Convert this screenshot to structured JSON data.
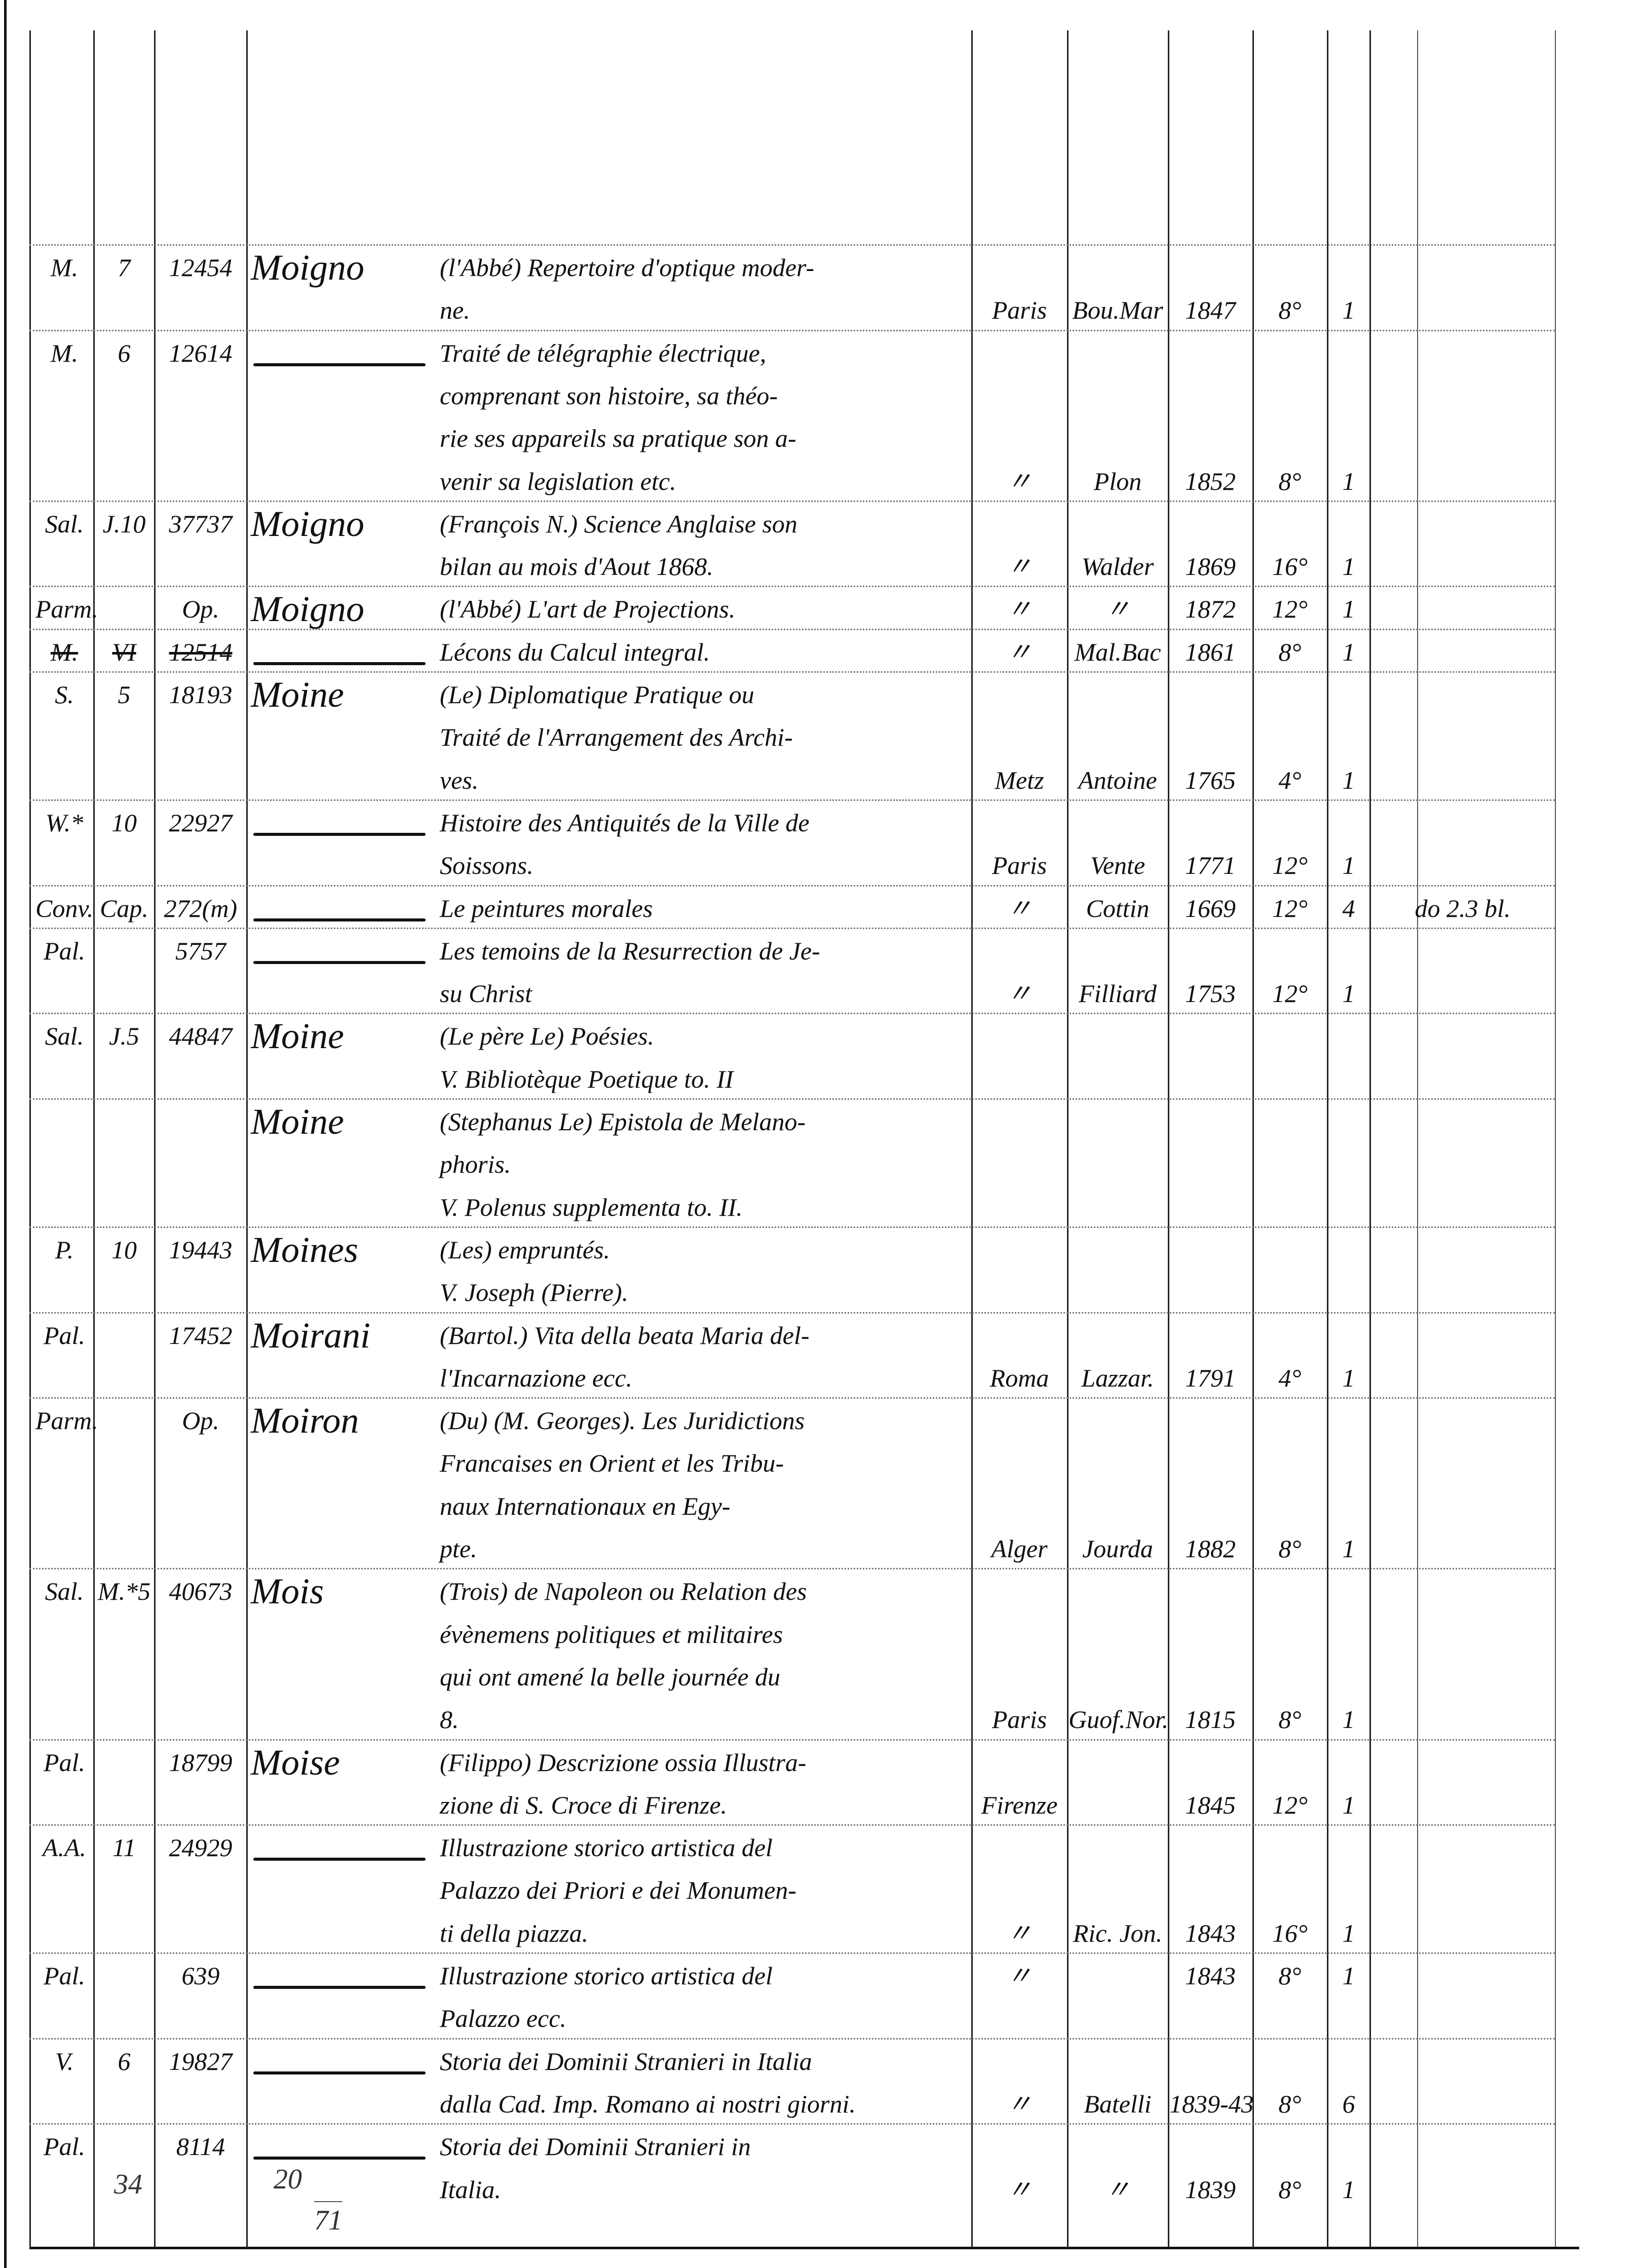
{
  "ledger": {
    "entries": [
      {
        "shelf": "M.",
        "case": "7",
        "number": "12454",
        "author": "Moigno",
        "lines": [
          {
            "title": "(l'Abbé) Repertoire d'optique moder-"
          },
          {
            "title": "ne.",
            "place": "Paris",
            "publisher": "Bou.Mar",
            "year": "1847",
            "format": "8°",
            "volumes": "1"
          }
        ]
      },
      {
        "shelf": "M.",
        "case": "6",
        "number": "12614",
        "author": "",
        "ditto": true,
        "lines": [
          {
            "title": "Traité de télégraphie électrique,"
          },
          {
            "title": "comprenant son histoire, sa théo-"
          },
          {
            "title": "rie ses appareils sa pratique son a-"
          },
          {
            "title": "venir sa legislation etc.",
            "place": "〃",
            "publisher": "Plon",
            "year": "1852",
            "format": "8°",
            "volumes": "1"
          }
        ]
      },
      {
        "shelf": "Sal.",
        "case": "J.10",
        "number": "37737",
        "author": "Moigno",
        "lines": [
          {
            "title": "(François N.) Science Anglaise son"
          },
          {
            "title": "bilan au mois d'Aout 1868.",
            "place": "〃",
            "publisher": "Walder",
            "year": "1869",
            "format": "16°",
            "volumes": "1"
          }
        ]
      },
      {
        "shelf": "Parm.",
        "case": "",
        "number": "Op.",
        "author": "Moigno",
        "lines": [
          {
            "title": "(l'Abbé) L'art de Projections.",
            "place": "〃",
            "publisher": "〃",
            "year": "1872",
            "format": "12°",
            "volumes": "1"
          }
        ]
      },
      {
        "shelf": "M.",
        "case": "VI",
        "number": "12514",
        "author": "",
        "ditto": true,
        "struck": true,
        "lines": [
          {
            "title": "Lécons du Calcul integral.",
            "place": "〃",
            "publisher": "Mal.Bac",
            "year": "1861",
            "format": "8°",
            "volumes": "1"
          }
        ]
      },
      {
        "shelf": "S.",
        "case": "5",
        "number": "18193",
        "author": "Moine",
        "lines": [
          {
            "title": "(Le) Diplomatique Pratique ou"
          },
          {
            "title": "Traité de l'Arrangement des Archi-"
          },
          {
            "title": "ves.",
            "place": "Metz",
            "publisher": "Antoine",
            "year": "1765",
            "format": "4°",
            "volumes": "1"
          }
        ]
      },
      {
        "shelf": "W.*",
        "case": "10",
        "number": "22927",
        "author": "",
        "ditto": true,
        "lines": [
          {
            "title": "Histoire des Antiquités de la Ville de"
          },
          {
            "title": "Soissons.",
            "place": "Paris",
            "publisher": "Vente",
            "year": "1771",
            "format": "12°",
            "volumes": "1"
          }
        ]
      },
      {
        "shelf": "Conv.",
        "case": "Cap.",
        "number": "272(m)",
        "author": "",
        "ditto": true,
        "lines": [
          {
            "title": "Le peintures morales",
            "place": "〃",
            "publisher": "Cottin",
            "year": "1669",
            "format": "12°",
            "volumes": "4",
            "note": "do 2.3 bl."
          }
        ]
      },
      {
        "shelf": "Pal.",
        "case": "",
        "number": "5757",
        "author": "",
        "ditto": true,
        "lines": [
          {
            "title": "Les temoins de la Resurrection de Je-"
          },
          {
            "title": "su Christ",
            "place": "〃",
            "publisher": "Filliard",
            "year": "1753",
            "format": "12°",
            "volumes": "1"
          }
        ]
      },
      {
        "shelf": "Sal.",
        "case": "J.5",
        "number": "44847",
        "author": "Moine",
        "lines": [
          {
            "title": "(Le père Le) Poésies."
          },
          {
            "title": "V. Bibliotèque Poetique to. II"
          }
        ]
      },
      {
        "shelf": "",
        "case": "",
        "number": "",
        "author": "Moine",
        "lines": [
          {
            "title": "(Stephanus Le) Epistola de Melano-"
          },
          {
            "title": "phoris."
          },
          {
            "title": "V. Polenus supplementa to. II."
          }
        ]
      },
      {
        "shelf": "P.",
        "case": "10",
        "number": "19443",
        "author": "Moines",
        "lines": [
          {
            "title": "(Les) empruntés."
          },
          {
            "title": "V. Joseph (Pierre)."
          }
        ]
      },
      {
        "shelf": "Pal.",
        "case": "",
        "number": "17452",
        "author": "Moirani",
        "lines": [
          {
            "title": "(Bartol.) Vita della beata Maria del-"
          },
          {
            "title": "l'Incarnazione ecc.",
            "place": "Roma",
            "publisher": "Lazzar.",
            "year": "1791",
            "format": "4°",
            "volumes": "1"
          }
        ]
      },
      {
        "shelf": "Parm.",
        "case": "",
        "number": "Op.",
        "author": "Moiron",
        "lines": [
          {
            "title": "(Du) (M. Georges). Les Juridictions"
          },
          {
            "title": "Francaises en Orient et les Tribu-"
          },
          {
            "title": "naux Internationaux en Egy-"
          },
          {
            "title": "pte.",
            "place": "Alger",
            "publisher": "Jourda",
            "year": "1882",
            "format": "8°",
            "volumes": "1"
          }
        ]
      },
      {
        "shelf": "Sal.",
        "case": "M.*5",
        "number": "40673",
        "author": "Mois",
        "lines": [
          {
            "title": "(Trois) de Napoleon ou Relation des"
          },
          {
            "title": "évènemens politiques et militaires"
          },
          {
            "title": "qui ont amené la belle journée du"
          },
          {
            "title": "8.",
            "place": "Paris",
            "publisher": "Guof.Nor.",
            "year": "1815",
            "format": "8°",
            "volumes": "1"
          }
        ]
      },
      {
        "shelf": "Pal.",
        "case": "",
        "number": "18799",
        "author": "Moise",
        "lines": [
          {
            "title": "(Filippo) Descrizione ossia Illustra-"
          },
          {
            "title": "zione di S. Croce di Firenze.",
            "place": "Firenze",
            "publisher": "",
            "year": "1845",
            "format": "12°",
            "volumes": "1"
          }
        ]
      },
      {
        "shelf": "A.A.",
        "case": "11",
        "number": "24929",
        "author": "",
        "ditto": true,
        "lines": [
          {
            "title": "Illustrazione storico artistica del"
          },
          {
            "title": "Palazzo dei Priori e dei Monumen-"
          },
          {
            "title": "ti della piazza.",
            "place": "〃",
            "publisher": "Ric. Jon.",
            "year": "1843",
            "format": "16°",
            "volumes": "1"
          }
        ]
      },
      {
        "shelf": "Pal.",
        "case": "",
        "number": "639",
        "author": "",
        "ditto": true,
        "lines": [
          {
            "title": "Illustrazione storico artistica del",
            "place": "〃",
            "publisher": "",
            "year": "1843",
            "format": "8°",
            "volumes": "1"
          },
          {
            "title": "Palazzo ecc."
          }
        ]
      },
      {
        "shelf": "V.",
        "case": "6",
        "number": "19827",
        "author": "",
        "ditto": true,
        "lines": [
          {
            "title": "Storia dei Dominii Stranieri in Italia"
          },
          {
            "title": "dalla Cad. Imp. Romano ai nostri giorni.",
            "place": "〃",
            "publisher": "Batelli",
            "year": "1839-43",
            "format": "8°",
            "volumes": "6"
          }
        ]
      },
      {
        "shelf": "Pal.",
        "case": "",
        "number": "8114",
        "author": "",
        "ditto": true,
        "lines": [
          {
            "title": "Storia dei Dominii Stranieri in"
          },
          {
            "title": "Italia.",
            "place": "〃",
            "publisher": "〃",
            "year": "1839",
            "format": "8°",
            "volumes": "1"
          }
        ]
      }
    ]
  },
  "footer": {
    "count_left": "34",
    "count_mid_top": "20",
    "count_mid_bottom": "71"
  }
}
